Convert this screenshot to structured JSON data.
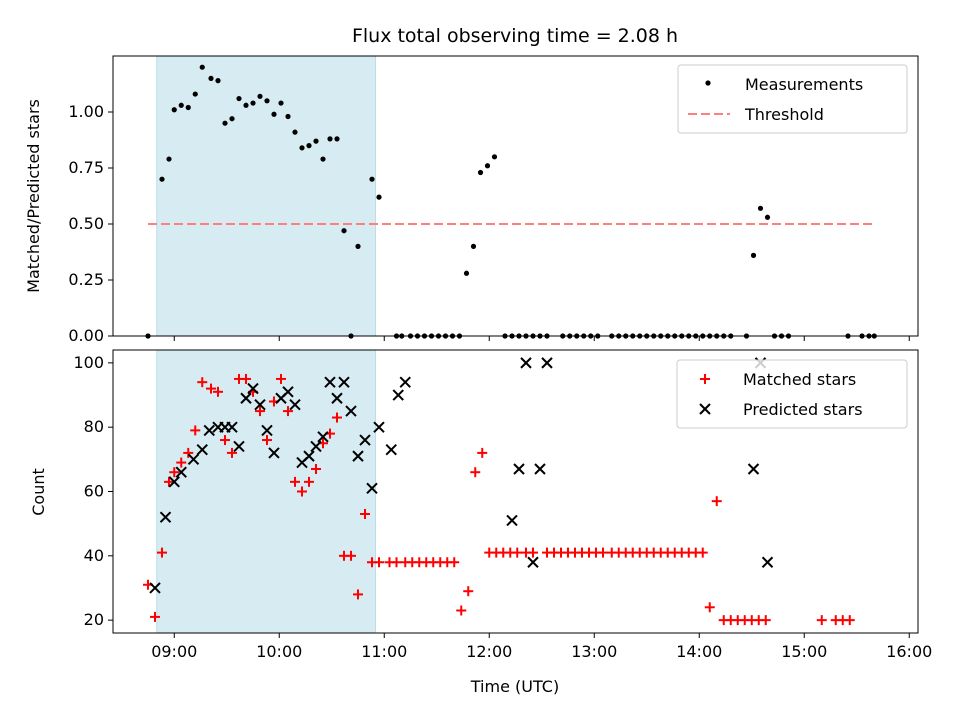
{
  "chart_data": [
    {
      "type": "scatter",
      "title": "Flux total observing time = 2.08 h",
      "xlabel": "",
      "ylabel": "Matched/Predicted stars",
      "ylim": [
        0,
        1.25
      ],
      "xlim": [
        "08:25",
        "16:05"
      ],
      "x_ticks": [
        "09:00",
        "10:00",
        "11:00",
        "12:00",
        "13:00",
        "14:00",
        "15:00",
        "16:00"
      ],
      "y_ticks": [
        "0.00",
        "0.25",
        "0.50",
        "0.75",
        "1.00"
      ],
      "highlight_span": [
        "08:50",
        "10:55"
      ],
      "highlight_color": "#add8e6",
      "legend_position": "upper right",
      "series": [
        {
          "name": "Measurements",
          "color": "#000000",
          "marker": "dot",
          "x": [
            "08:45",
            "08:53",
            "08:57",
            "09:00",
            "09:04",
            "09:08",
            "09:12",
            "09:16",
            "09:21",
            "09:25",
            "09:29",
            "09:33",
            "09:37",
            "09:41",
            "09:45",
            "09:49",
            "09:53",
            "09:57",
            "10:01",
            "10:05",
            "10:09",
            "10:13",
            "10:17",
            "10:21",
            "10:25",
            "10:29",
            "10:33",
            "10:37",
            "10:41",
            "10:45",
            "10:53",
            "10:57",
            "11:07",
            "11:10",
            "11:15",
            "11:19",
            "11:23",
            "11:27",
            "11:31",
            "11:35",
            "11:39",
            "11:43",
            "11:47",
            "11:51",
            "11:55",
            "11:59",
            "12:03",
            "12:09",
            "12:13",
            "12:17",
            "12:21",
            "12:25",
            "12:29",
            "12:33",
            "12:42",
            "12:46",
            "12:50",
            "12:54",
            "12:58",
            "13:02",
            "13:10",
            "13:14",
            "13:18",
            "13:22",
            "13:26",
            "13:30",
            "13:34",
            "13:38",
            "13:42",
            "13:46",
            "13:50",
            "13:54",
            "13:58",
            "14:02",
            "14:06",
            "14:10",
            "14:14",
            "14:18",
            "14:27",
            "14:31",
            "14:35",
            "14:39",
            "14:43",
            "14:47",
            "14:51",
            "15:25",
            "15:33",
            "15:37",
            "15:40"
          ],
          "y": [
            0.0,
            0.7,
            0.79,
            1.01,
            1.03,
            1.02,
            1.08,
            1.2,
            1.15,
            1.14,
            0.95,
            0.97,
            1.06,
            1.03,
            1.04,
            1.07,
            1.05,
            0.99,
            1.04,
            0.98,
            0.91,
            0.84,
            0.85,
            0.87,
            0.79,
            0.88,
            0.88,
            0.47,
            0.0,
            0.4,
            0.7,
            0.62,
            0.0,
            0.0,
            0.0,
            0.0,
            0.0,
            0.0,
            0.0,
            0.0,
            0.0,
            0.0,
            0.28,
            0.4,
            0.73,
            0.76,
            0.8,
            0.0,
            0.0,
            0.0,
            0.0,
            0.0,
            0.0,
            0.0,
            0.0,
            0.0,
            0.0,
            0.0,
            0.0,
            0.0,
            0.0,
            0.0,
            0.0,
            0.0,
            0.0,
            0.0,
            0.0,
            0.0,
            0.0,
            0.0,
            0.0,
            0.0,
            0.0,
            0.0,
            0.0,
            0.0,
            0.0,
            0.0,
            0.0,
            0.36,
            0.57,
            0.53,
            0.0,
            0.0,
            0.0,
            0.0,
            0.0,
            0.0,
            0.0
          ]
        },
        {
          "name": "Threshold",
          "color": "#ff7f7f",
          "line_style": "dashed",
          "x": [
            "08:45",
            "15:40"
          ],
          "y": [
            0.5,
            0.5
          ]
        }
      ]
    },
    {
      "type": "scatter",
      "title": "",
      "xlabel": "Time (UTC)",
      "ylabel": "Count",
      "ylim": [
        16,
        104
      ],
      "xlim": [
        "08:25",
        "16:05"
      ],
      "x_ticks": [
        "09:00",
        "10:00",
        "11:00",
        "12:00",
        "13:00",
        "14:00",
        "15:00",
        "16:00"
      ],
      "y_ticks": [
        "20",
        "40",
        "60",
        "80",
        "100"
      ],
      "highlight_span": [
        "08:50",
        "10:55"
      ],
      "highlight_color": "#add8e6",
      "legend_position": "upper right",
      "series": [
        {
          "name": "Matched stars",
          "color": "#ff0000",
          "marker": "plus",
          "x": [
            "08:45",
            "08:49",
            "08:53",
            "08:57",
            "09:00",
            "09:04",
            "09:08",
            "09:12",
            "09:16",
            "09:21",
            "09:25",
            "09:29",
            "09:33",
            "09:37",
            "09:41",
            "09:45",
            "09:49",
            "09:53",
            "09:57",
            "10:01",
            "10:05",
            "10:09",
            "10:13",
            "10:17",
            "10:21",
            "10:25",
            "10:29",
            "10:33",
            "10:37",
            "10:41",
            "10:45",
            "10:49",
            "10:53",
            "10:57",
            "11:03",
            "11:07",
            "11:12",
            "11:16",
            "11:20",
            "11:24",
            "11:28",
            "11:32",
            "11:36",
            "11:40",
            "11:44",
            "11:48",
            "11:52",
            "11:56",
            "12:00",
            "12:04",
            "12:08",
            "12:12",
            "12:16",
            "12:21",
            "12:25",
            "12:33",
            "12:37",
            "12:41",
            "12:45",
            "12:49",
            "12:53",
            "12:57",
            "13:01",
            "13:05",
            "13:10",
            "13:14",
            "13:18",
            "13:22",
            "13:26",
            "13:30",
            "13:34",
            "13:38",
            "13:42",
            "13:46",
            "13:50",
            "13:54",
            "13:58",
            "14:02",
            "14:06",
            "14:10",
            "14:14",
            "14:18",
            "14:22",
            "14:26",
            "14:30",
            "14:34",
            "14:38",
            "15:10",
            "15:18",
            "15:22",
            "15:26"
          ],
          "y": [
            31,
            21,
            41,
            63,
            66,
            69,
            72,
            79,
            94,
            92,
            91,
            76,
            72,
            95,
            95,
            91,
            85,
            76,
            88,
            95,
            85,
            63,
            60,
            63,
            67,
            75,
            78,
            83,
            40,
            40,
            28,
            53,
            38,
            38,
            38,
            38,
            38,
            38,
            38,
            38,
            38,
            38,
            38,
            38,
            23,
            29,
            66,
            72,
            41,
            41,
            41,
            41,
            41,
            41,
            41,
            41,
            41,
            41,
            41,
            41,
            41,
            41,
            41,
            41,
            41,
            41,
            41,
            41,
            41,
            41,
            41,
            41,
            41,
            41,
            41,
            41,
            41,
            41,
            24,
            57,
            20,
            20,
            20,
            20,
            20,
            20,
            20,
            20,
            20,
            20,
            20
          ]
        },
        {
          "name": "Predicted stars",
          "color": "#000000",
          "marker": "x",
          "x": [
            "08:49",
            "08:55",
            "09:00",
            "09:04",
            "09:11",
            "09:16",
            "09:20",
            "09:25",
            "09:29",
            "09:33",
            "09:37",
            "09:41",
            "09:45",
            "09:49",
            "09:53",
            "09:57",
            "10:01",
            "10:05",
            "10:09",
            "10:13",
            "10:17",
            "10:21",
            "10:25",
            "10:29",
            "10:33",
            "10:37",
            "10:41",
            "10:45",
            "10:49",
            "10:53",
            "10:57",
            "11:04",
            "11:08",
            "11:12",
            "12:13",
            "12:17",
            "12:21",
            "12:25",
            "12:29",
            "12:33",
            "14:31",
            "14:35",
            "14:39"
          ],
          "y": [
            30,
            52,
            63,
            66,
            70,
            73,
            79,
            80,
            80,
            80,
            74,
            89,
            92,
            87,
            79,
            72,
            89,
            91,
            87,
            69,
            71,
            74,
            77,
            94,
            89,
            94,
            85,
            71,
            76,
            61,
            80,
            73,
            90,
            94,
            51,
            67,
            100,
            38,
            67,
            100,
            67,
            100,
            38
          ]
        }
      ]
    }
  ]
}
